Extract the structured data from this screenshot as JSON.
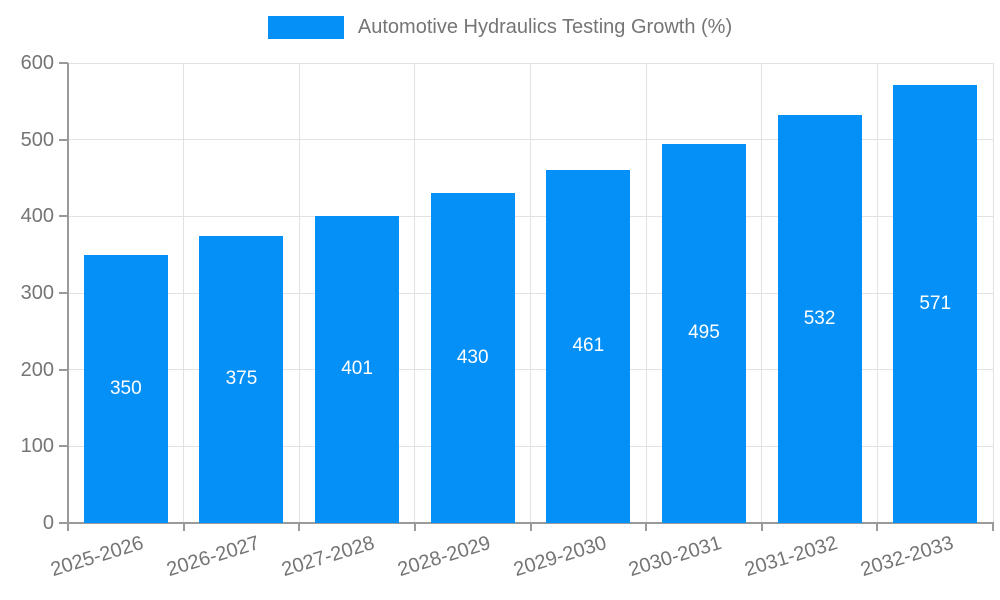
{
  "chart_data": {
    "type": "bar",
    "title": "",
    "legend_label": "Automotive Hydraulics Testing Growth (%)",
    "legend_position": "top",
    "categories": [
      "2025-2026",
      "2026-2027",
      "2027-2028",
      "2028-2029",
      "2029-2030",
      "2030-2031",
      "2031-2032",
      "2032-2033"
    ],
    "values": [
      350,
      375,
      401,
      430,
      461,
      495,
      532,
      571
    ],
    "xlabel": "",
    "ylabel": "",
    "ylim": [
      0,
      600
    ],
    "yticks": [
      0,
      100,
      200,
      300,
      400,
      500,
      600
    ],
    "grid": true,
    "colors": {
      "bar": "#0590f8",
      "axis_text": "#757575",
      "grid_line": "#e2e2e2",
      "axis_line": "#9a9a9a",
      "value_label": "#ffffff"
    }
  }
}
